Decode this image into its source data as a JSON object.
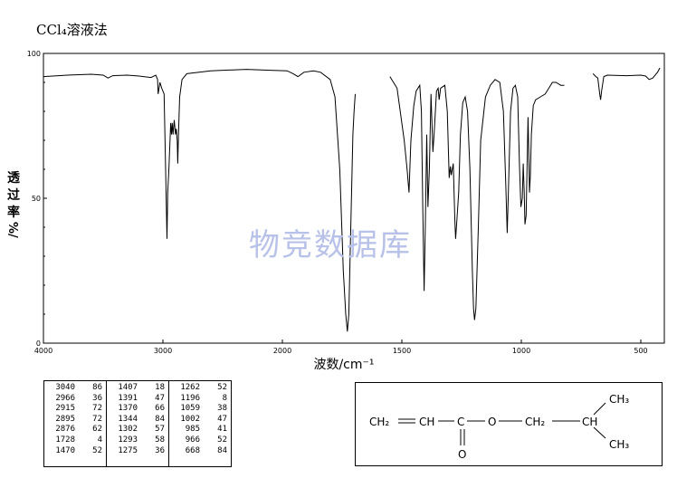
{
  "title": "CCl₄溶液法",
  "watermark": "物竞数据库",
  "chart_data": {
    "type": "line",
    "ylabel_chars": [
      "透",
      "过",
      "率"
    ],
    "ylabel_unit": "%/",
    "xlabel": "波数/cm⁻¹",
    "x_reversed": true,
    "xlim": [
      4000,
      400
    ],
    "ylim": [
      0,
      100
    ],
    "x_ticks": [
      4000,
      3000,
      2000,
      1500,
      1000,
      500
    ],
    "x_tick_labels": [
      "4000",
      "3000",
      "2000",
      "1500",
      "1000",
      "500"
    ],
    "y_ticks": [
      0,
      50,
      100
    ],
    "y_tick_labels": [
      "0",
      "50",
      "100"
    ],
    "segments": [
      [
        [
          4000,
          92
        ],
        [
          3800,
          92.5
        ],
        [
          3600,
          92.8
        ],
        [
          3500,
          92.5
        ],
        [
          3460,
          91.5
        ],
        [
          3420,
          92.3
        ],
        [
          3300,
          92.5
        ],
        [
          3200,
          92.2
        ],
        [
          3100,
          91.7
        ],
        [
          3060,
          92.5
        ],
        [
          3045,
          91
        ],
        [
          3040,
          86
        ],
        [
          3030,
          88.5
        ],
        [
          3025,
          90
        ],
        [
          3010,
          88
        ],
        [
          2990,
          86
        ],
        [
          2975,
          55
        ],
        [
          2966,
          36
        ],
        [
          2960,
          52
        ],
        [
          2950,
          60
        ],
        [
          2935,
          76
        ],
        [
          2928,
          72
        ],
        [
          2922,
          76
        ],
        [
          2915,
          72
        ],
        [
          2905,
          77
        ],
        [
          2895,
          72
        ],
        [
          2888,
          74
        ],
        [
          2880,
          70
        ],
        [
          2876,
          62
        ],
        [
          2870,
          72
        ],
        [
          2860,
          85
        ],
        [
          2840,
          91
        ],
        [
          2800,
          93
        ],
        [
          2600,
          94
        ],
        [
          2300,
          94.5
        ],
        [
          2100,
          94.2
        ],
        [
          1980,
          94
        ],
        [
          1955,
          93
        ],
        [
          1935,
          92
        ],
        [
          1910,
          93.5
        ],
        [
          1870,
          94
        ],
        [
          1840,
          93.5
        ],
        [
          1800,
          91
        ],
        [
          1780,
          85
        ],
        [
          1760,
          60
        ],
        [
          1745,
          25
        ],
        [
          1735,
          10
        ],
        [
          1728,
          4
        ],
        [
          1722,
          10
        ],
        [
          1715,
          35
        ],
        [
          1705,
          72
        ],
        [
          1700,
          80
        ],
        [
          1695,
          86
        ]
      ],
      [
        [
          1550,
          92
        ],
        [
          1520,
          88
        ],
        [
          1490,
          70
        ],
        [
          1478,
          60
        ],
        [
          1470,
          52
        ],
        [
          1462,
          70
        ],
        [
          1450,
          82
        ],
        [
          1440,
          87
        ],
        [
          1425,
          89
        ],
        [
          1418,
          80
        ],
        [
          1412,
          45
        ],
        [
          1407,
          18
        ],
        [
          1402,
          40
        ],
        [
          1396,
          72
        ],
        [
          1391,
          47
        ],
        [
          1385,
          60
        ],
        [
          1378,
          86
        ],
        [
          1370,
          66
        ],
        [
          1365,
          72
        ],
        [
          1355,
          87
        ],
        [
          1348,
          88
        ],
        [
          1344,
          84
        ],
        [
          1338,
          88
        ],
        [
          1320,
          89
        ],
        [
          1310,
          80
        ],
        [
          1302,
          57
        ],
        [
          1297,
          61
        ],
        [
          1293,
          58
        ],
        [
          1285,
          62
        ],
        [
          1278,
          42
        ],
        [
          1275,
          36
        ],
        [
          1270,
          42
        ],
        [
          1262,
          52
        ],
        [
          1255,
          72
        ],
        [
          1245,
          83
        ],
        [
          1235,
          85
        ],
        [
          1225,
          80
        ],
        [
          1215,
          60
        ],
        [
          1205,
          25
        ],
        [
          1200,
          12
        ],
        [
          1196,
          8
        ],
        [
          1190,
          12
        ],
        [
          1180,
          40
        ],
        [
          1170,
          70
        ],
        [
          1150,
          85
        ],
        [
          1130,
          89
        ],
        [
          1110,
          91
        ],
        [
          1090,
          90
        ],
        [
          1075,
          80
        ],
        [
          1065,
          55
        ],
        [
          1059,
          38
        ],
        [
          1055,
          50
        ],
        [
          1045,
          80
        ],
        [
          1035,
          88
        ],
        [
          1025,
          89
        ],
        [
          1015,
          85
        ],
        [
          1008,
          62
        ],
        [
          1002,
          47
        ],
        [
          996,
          50
        ],
        [
          992,
          62
        ],
        [
          988,
          52
        ],
        [
          985,
          41
        ],
        [
          980,
          44
        ],
        [
          976,
          60
        ],
        [
          972,
          78
        ],
        [
          968,
          63
        ],
        [
          966,
          52
        ],
        [
          962,
          58
        ],
        [
          958,
          72
        ],
        [
          950,
          82
        ],
        [
          940,
          84
        ],
        [
          920,
          85
        ],
        [
          900,
          86
        ],
        [
          885,
          88
        ],
        [
          870,
          90
        ],
        [
          855,
          90
        ],
        [
          835,
          89
        ],
        [
          820,
          89
        ]
      ],
      [
        [
          700,
          93
        ],
        [
          688,
          92
        ],
        [
          680,
          91.5
        ],
        [
          672,
          86
        ],
        [
          668,
          84
        ],
        [
          664,
          87
        ],
        [
          655,
          92
        ],
        [
          640,
          92.5
        ],
        [
          560,
          92.3
        ],
        [
          500,
          92.5
        ],
        [
          480,
          92.2
        ],
        [
          465,
          91
        ],
        [
          450,
          91.5
        ],
        [
          430,
          93.5
        ],
        [
          420,
          95
        ]
      ]
    ]
  },
  "peak_table": {
    "columns": [
      [
        [
          "3040",
          "86"
        ],
        [
          "2966",
          "36"
        ],
        [
          "2915",
          "72"
        ],
        [
          "2895",
          "72"
        ],
        [
          "2876",
          "62"
        ],
        [
          "1728",
          "4"
        ],
        [
          "1470",
          "52"
        ]
      ],
      [
        [
          "1407",
          "18"
        ],
        [
          "1391",
          "47"
        ],
        [
          "1370",
          "66"
        ],
        [
          "1344",
          "84"
        ],
        [
          "1302",
          "57"
        ],
        [
          "1293",
          "58"
        ],
        [
          "1275",
          "36"
        ]
      ],
      [
        [
          "1262",
          "52"
        ],
        [
          "1196",
          "8"
        ],
        [
          "1059",
          "38"
        ],
        [
          "1002",
          "47"
        ],
        [
          "985",
          "41"
        ],
        [
          "966",
          "52"
        ],
        [
          "668",
          "84"
        ]
      ]
    ]
  },
  "structure": {
    "ch2": "CH₂",
    "ch": "CH",
    "c": "C",
    "o_ester": "O",
    "ch2b": "CH₂",
    "ch_iso": "CH",
    "ch3_top": "CH₃",
    "ch3_bottom": "CH₃",
    "o_carbonyl": "O"
  }
}
